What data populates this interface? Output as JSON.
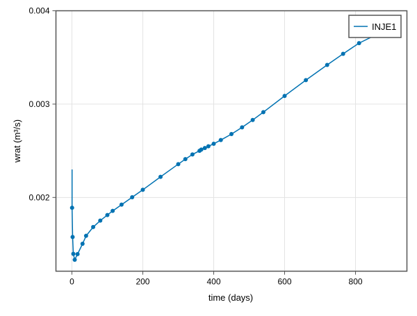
{
  "chart_data": {
    "type": "line",
    "title": "",
    "xlabel": "time (days)",
    "ylabel": "wrat (m³/s)",
    "xlim": [
      -45,
      945
    ],
    "ylim": [
      0.00121,
      0.004
    ],
    "xticks": [
      0,
      200,
      400,
      600,
      800
    ],
    "xtick_labels": [
      "0",
      "200",
      "400",
      "600",
      "800"
    ],
    "yticks": [
      0.002,
      0.003,
      0.004
    ],
    "ytick_labels": [
      "0.002",
      "0.003",
      "0.004"
    ],
    "grid": true,
    "legend_position": "top-right",
    "series": [
      {
        "name": "INJE1",
        "color": "#0072b2",
        "markers": true,
        "x": [
          0.5,
          0.5,
          2,
          4,
          8,
          16,
          30,
          40,
          60,
          80,
          100,
          115,
          140,
          170,
          200,
          250,
          300,
          320,
          340,
          360,
          365,
          375,
          385,
          400,
          420,
          450,
          480,
          510,
          540,
          600,
          660,
          720,
          765,
          810,
          900
        ],
        "y": [
          0.0023,
          0.00189,
          0.001576,
          0.001396,
          0.001333,
          0.001393,
          0.001504,
          0.001589,
          0.001683,
          0.001752,
          0.001812,
          0.001856,
          0.001923,
          0.002002,
          0.002082,
          0.002221,
          0.002357,
          0.002411,
          0.002461,
          0.0025,
          0.002513,
          0.00253,
          0.002548,
          0.002575,
          0.002615,
          0.002679,
          0.002751,
          0.00283,
          0.002914,
          0.003088,
          0.003257,
          0.00342,
          0.003539,
          0.003653,
          0.00382
        ],
        "marker_from_index": 1
      }
    ]
  }
}
